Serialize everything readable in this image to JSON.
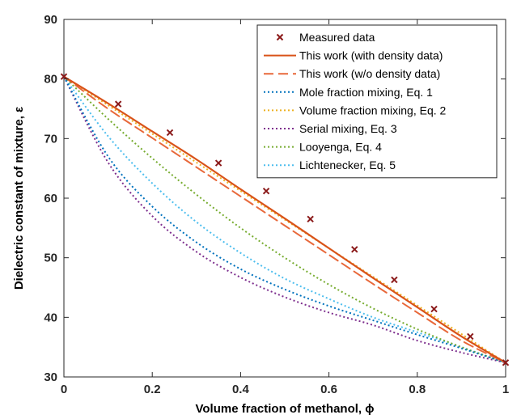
{
  "chart_data": {
    "type": "line",
    "xlabel": "Volume fraction of methanol, ϕ",
    "ylabel": "Dielectric constant of mixture, ε",
    "xlim": [
      0,
      1
    ],
    "ylim": [
      30,
      90
    ],
    "xticks": [
      0,
      0.2,
      0.4,
      0.6,
      0.8,
      1
    ],
    "xtick_labels": [
      "0",
      "0.2",
      "0.4",
      "0.6",
      "0.8",
      "1"
    ],
    "yticks": [
      30,
      40,
      50,
      60,
      70,
      80,
      90
    ],
    "ytick_labels": [
      "30",
      "40",
      "50",
      "60",
      "70",
      "80",
      "90"
    ],
    "grid": false,
    "legend_position": "top-right",
    "x": [
      0,
      0.1,
      0.2,
      0.3,
      0.4,
      0.5,
      0.6,
      0.7,
      0.8,
      0.9,
      1.0
    ],
    "series": [
      {
        "name": "Measured data",
        "style": "marker",
        "color": "#8B1A1A",
        "points": [
          [
            0.0,
            80.4
          ],
          [
            0.123,
            75.8
          ],
          [
            0.24,
            71.0
          ],
          [
            0.35,
            65.9
          ],
          [
            0.458,
            61.2
          ],
          [
            0.558,
            56.5
          ],
          [
            0.658,
            51.4
          ],
          [
            0.748,
            46.3
          ],
          [
            0.838,
            41.4
          ],
          [
            0.92,
            36.8
          ],
          [
            1.0,
            32.4
          ]
        ]
      },
      {
        "name": "This work (with density data)",
        "style": "solid",
        "color": "#D95319",
        "values": [
          80.4,
          75.9,
          71.2,
          66.5,
          61.5,
          56.6,
          51.6,
          46.6,
          41.7,
          36.8,
          32.4
        ]
      },
      {
        "name": "This work (w/o density data)",
        "style": "dashed",
        "color": "#E8683A",
        "values": [
          80.4,
          75.0,
          70.1,
          65.2,
          60.3,
          55.4,
          50.5,
          45.6,
          40.8,
          36.1,
          32.4
        ]
      },
      {
        "name": "Mole fraction mixing, Eq. 1",
        "style": "dotted",
        "color": "#0072BD",
        "values": [
          80.4,
          67.0,
          58.6,
          52.6,
          48.1,
          44.7,
          41.9,
          39.5,
          37.1,
          34.8,
          32.4
        ]
      },
      {
        "name": "Volume fraction mixing, Eq. 2",
        "style": "dotted",
        "color": "#EDB120",
        "values": [
          80.4,
          75.6,
          70.8,
          66.0,
          61.2,
          56.4,
          51.6,
          46.8,
          42.0,
          37.2,
          32.4
        ]
      },
      {
        "name": "Serial mixing, Eq. 3",
        "style": "dotted",
        "color": "#7E2F8E",
        "values": [
          80.4,
          66.0,
          57.0,
          51.0,
          46.7,
          43.4,
          40.8,
          38.7,
          36.1,
          34.1,
          32.4
        ]
      },
      {
        "name": "Looyenga, Eq. 4",
        "style": "dotted",
        "color": "#77AC30",
        "values": [
          80.4,
          73.3,
          66.7,
          60.6,
          55.0,
          50.0,
          45.5,
          41.5,
          38.0,
          35.0,
          32.4
        ]
      },
      {
        "name": "Lichtenecker, Eq. 5",
        "style": "dotted",
        "color": "#4DBEEE",
        "values": [
          80.4,
          70.4,
          62.5,
          56.0,
          50.8,
          46.5,
          43.1,
          40.0,
          37.5,
          35.0,
          32.4
        ]
      }
    ]
  }
}
